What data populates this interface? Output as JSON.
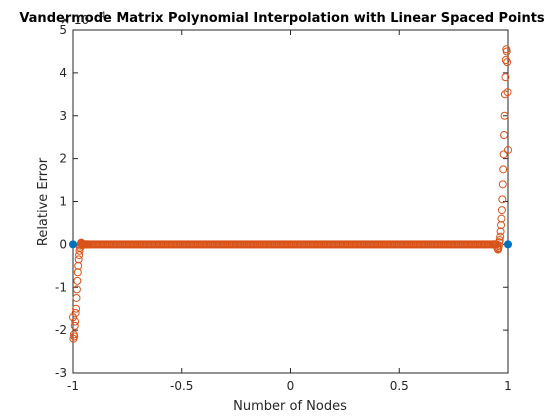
{
  "chart_data": {
    "type": "scatter",
    "title": "Vandermode Matrix Polynomial Interpolation with Linear Spaced Points",
    "xlabel": "Number of Nodes",
    "ylabel": "Relative Error",
    "y_exponent_label": "× 10",
    "y_exponent_power": "4",
    "xlim": [
      -1,
      1
    ],
    "ylim": [
      -3,
      5
    ],
    "xticks": [
      -1,
      -0.5,
      0,
      0.5,
      1
    ],
    "xtick_labels": [
      "-1",
      "-0.5",
      "0",
      "0.5",
      "1"
    ],
    "yticks": [
      -3,
      -2,
      -1,
      0,
      1,
      2,
      3,
      4,
      5
    ],
    "ytick_labels": [
      "-3",
      "-2",
      "-1",
      "0",
      "1",
      "2",
      "3",
      "4",
      "5"
    ],
    "grid": false,
    "colors": {
      "open_markers": "#d95319",
      "filled_markers": "#0072bd"
    },
    "series": [
      {
        "marker": "open-circle",
        "x": [
          -1.0,
          -0.998,
          -0.996,
          -0.994,
          -0.992,
          -0.99,
          -0.988,
          -0.986,
          -0.984,
          -0.982,
          -0.98,
          -0.978,
          -0.976,
          -0.974,
          -0.972,
          -0.97,
          -0.968,
          -0.966,
          -0.964,
          -0.962,
          -0.96,
          -0.958,
          -0.956,
          -0.954,
          -0.952,
          -0.95,
          -0.948,
          -0.946,
          -0.944,
          -0.942,
          -0.94,
          -0.938,
          -0.936,
          -0.934,
          -0.932,
          -0.93,
          0.93,
          0.932,
          0.934,
          0.936,
          0.938,
          0.94,
          0.942,
          0.944,
          0.946,
          0.948,
          0.95,
          0.952,
          0.954,
          0.956,
          0.958,
          0.96,
          0.962,
          0.964,
          0.966,
          0.968,
          0.97,
          0.972,
          0.974,
          0.976,
          0.978,
          0.98,
          0.982,
          0.984,
          0.986,
          0.988,
          0.99,
          0.992,
          0.994,
          0.996,
          0.998,
          1.0
        ],
        "y": [
          -1.7,
          -2.2,
          -2.1,
          -2.15,
          -1.9,
          -1.8,
          -1.6,
          -1.5,
          -1.25,
          -1.05,
          -0.85,
          -0.65,
          -0.5,
          -0.35,
          -0.25,
          -0.15,
          -0.08,
          -0.03,
          0.02,
          0.04,
          0.02,
          0.0,
          -0.02,
          0.01,
          0.0,
          0.0,
          0.0,
          0.0,
          0.0,
          0.0,
          0.0,
          0.0,
          0.0,
          0.0,
          0.0,
          0.0,
          0.0,
          0.0,
          0.0,
          0.0,
          0.0,
          0.0,
          0.0,
          0.0,
          0.0,
          0.0,
          -0.05,
          -0.1,
          -0.12,
          -0.08,
          -0.03,
          0.05,
          0.1,
          0.18,
          0.3,
          0.45,
          0.6,
          0.8,
          1.05,
          1.4,
          1.75,
          2.1,
          2.55,
          3.0,
          3.5,
          3.9,
          4.3,
          4.55,
          4.5,
          4.25,
          3.55,
          2.2
        ]
      },
      {
        "marker": "filled-circle",
        "x": [
          -1.0,
          1.0
        ],
        "y": [
          0,
          0
        ]
      }
    ]
  }
}
